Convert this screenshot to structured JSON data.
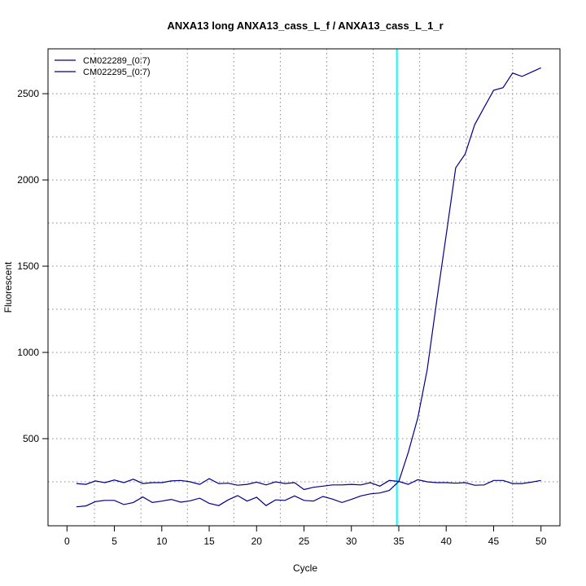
{
  "chart_data": {
    "type": "line",
    "title": "ANXA13 long ANXA13_cass_L_f / ANXA13_cass_L_1_r",
    "xlabel": "Cycle",
    "ylabel": "Fluorescent",
    "xlim": [
      -2,
      52
    ],
    "ylim": [
      -5,
      2760
    ],
    "xticks": [
      0,
      5,
      10,
      15,
      20,
      25,
      30,
      35,
      40,
      45,
      50
    ],
    "yticks": [
      500,
      1000,
      1500,
      2000,
      2500
    ],
    "x_grid": [
      2.9,
      7.8,
      12.7,
      17.6,
      22.5,
      27.4,
      32.3,
      37.2,
      42.1,
      47
    ],
    "y_grid": [
      250,
      500,
      750,
      1000,
      1250,
      1500,
      1750,
      2000,
      2250,
      2500
    ],
    "threshold_line": {
      "x": 34.8,
      "color": "#00ffff"
    },
    "legend_position": "top-left",
    "series": [
      {
        "name": "CM022289_(0:7)",
        "color": "#00008b",
        "x": [
          1,
          2,
          3,
          4,
          5,
          6,
          7,
          8,
          9,
          10,
          11,
          12,
          13,
          14,
          15,
          16,
          17,
          18,
          19,
          20,
          21,
          22,
          23,
          24,
          25,
          26,
          27,
          28,
          29,
          30,
          31,
          32,
          33,
          34,
          35,
          36,
          37,
          38,
          39,
          40,
          41,
          42,
          43,
          44,
          45,
          46,
          47,
          48,
          49,
          50
        ],
        "y": [
          240,
          235,
          255,
          245,
          260,
          245,
          265,
          240,
          245,
          245,
          255,
          258,
          250,
          235,
          268,
          240,
          242,
          230,
          235,
          248,
          232,
          250,
          240,
          245,
          205,
          218,
          225,
          232,
          232,
          235,
          232,
          245,
          225,
          258,
          252,
          235,
          262,
          250,
          245,
          245,
          242,
          245,
          230,
          232,
          258,
          258,
          240,
          240,
          248,
          258
        ]
      },
      {
        "name": "CM022295_(0:7)",
        "color": "#00008b",
        "x": [
          1,
          2,
          3,
          4,
          5,
          6,
          7,
          8,
          9,
          10,
          11,
          12,
          13,
          14,
          15,
          16,
          17,
          18,
          19,
          20,
          21,
          22,
          23,
          24,
          25,
          26,
          27,
          28,
          29,
          30,
          31,
          32,
          33,
          34,
          35,
          36,
          37,
          38,
          39,
          40,
          41,
          42,
          43,
          44,
          45,
          46,
          47,
          48,
          49,
          50
        ],
        "y": [
          105,
          110,
          135,
          142,
          142,
          118,
          130,
          162,
          130,
          138,
          148,
          132,
          140,
          155,
          125,
          112,
          145,
          170,
          138,
          160,
          112,
          145,
          142,
          168,
          142,
          138,
          165,
          150,
          130,
          148,
          168,
          180,
          185,
          200,
          252,
          420,
          620,
          900,
          1300,
          1680,
          2070,
          2150,
          2320,
          2420,
          2520,
          2535,
          2620,
          2600,
          2625,
          2650
        ]
      }
    ]
  }
}
